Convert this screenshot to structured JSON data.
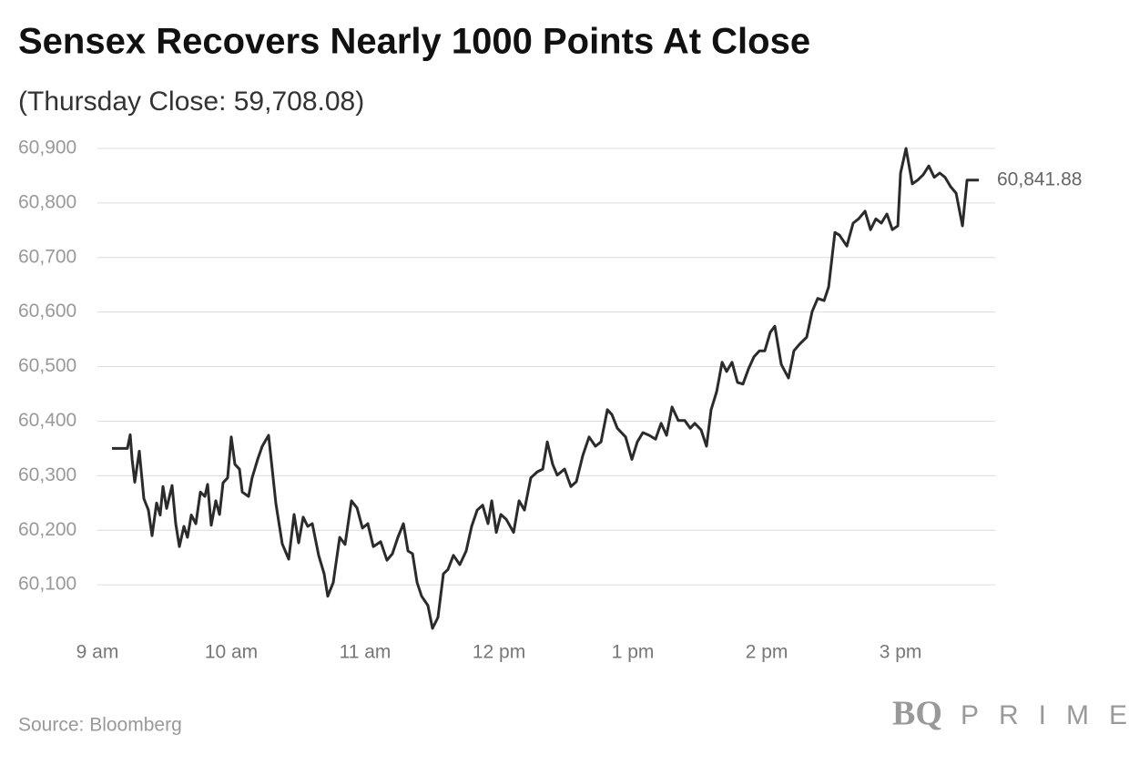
{
  "chart_data": {
    "type": "line",
    "title": "Sensex Recovers Nearly 1000 Points At Close",
    "subtitle": "(Thursday Close: 59,708.08)",
    "source": "Source: Bloomberg",
    "logo": {
      "brand": "BQ",
      "name": "PRIME"
    },
    "color": "#2b2b2b",
    "grid": true,
    "last_value_label": "60,841.88",
    "xlim": [
      9,
      15.707
    ],
    "xticks": [
      {
        "value": 9,
        "label": "9 am"
      },
      {
        "value": 10,
        "label": "10 am"
      },
      {
        "value": 11,
        "label": "11 am"
      },
      {
        "value": 12,
        "label": "12 pm"
      },
      {
        "value": 13,
        "label": "1 pm"
      },
      {
        "value": 14,
        "label": "2 pm"
      },
      {
        "value": 15,
        "label": "3 pm"
      }
    ],
    "ylim": [
      60000,
      60900
    ],
    "yticks": [
      {
        "value": 60100,
        "label": "60,100"
      },
      {
        "value": 60200,
        "label": "60,200"
      },
      {
        "value": 60300,
        "label": "60,300"
      },
      {
        "value": 60400,
        "label": "60,400"
      },
      {
        "value": 60500,
        "label": "60,500"
      },
      {
        "value": 60600,
        "label": "60,600"
      },
      {
        "value": 60700,
        "label": "60,700"
      },
      {
        "value": 60800,
        "label": "60,800"
      },
      {
        "value": 60900,
        "label": "60,900"
      }
    ],
    "x": [
      9.109,
      9.224,
      9.245,
      9.259,
      9.279,
      9.313,
      9.347,
      9.381,
      9.408,
      9.442,
      9.469,
      9.49,
      9.517,
      9.558,
      9.585,
      9.612,
      9.646,
      9.673,
      9.701,
      9.735,
      9.769,
      9.803,
      9.823,
      9.85,
      9.884,
      9.912,
      9.939,
      9.973,
      10.0,
      10.027,
      10.061,
      10.082,
      10.129,
      10.156,
      10.197,
      10.231,
      10.279,
      10.333,
      10.381,
      10.429,
      10.469,
      10.503,
      10.537,
      10.571,
      10.605,
      10.653,
      10.694,
      10.721,
      10.762,
      10.81,
      10.85,
      10.898,
      10.939,
      10.98,
      11.02,
      11.061,
      11.116,
      11.163,
      11.204,
      11.245,
      11.286,
      11.32,
      11.354,
      11.388,
      11.422,
      11.469,
      11.503,
      11.544,
      11.585,
      11.619,
      11.66,
      11.707,
      11.755,
      11.796,
      11.837,
      11.878,
      11.918,
      11.946,
      11.98,
      12.014,
      12.054,
      12.109,
      12.15,
      12.19,
      12.238,
      12.286,
      12.327,
      12.361,
      12.401,
      12.435,
      12.49,
      12.537,
      12.578,
      12.626,
      12.673,
      12.721,
      12.762,
      12.81,
      12.844,
      12.884,
      12.946,
      12.993,
      13.034,
      13.075,
      13.122,
      13.17,
      13.211,
      13.252,
      13.293,
      13.34,
      13.388,
      13.429,
      13.463,
      13.51,
      13.551,
      13.585,
      13.626,
      13.667,
      13.701,
      13.741,
      13.782,
      13.823,
      13.864,
      13.905,
      13.946,
      13.986,
      14.027,
      14.061,
      14.109,
      14.163,
      14.204,
      14.245,
      14.299,
      14.34,
      14.381,
      14.429,
      14.463,
      14.51,
      14.544,
      14.599,
      14.646,
      14.687,
      14.735,
      14.776,
      14.816,
      14.857,
      14.898,
      14.939,
      14.98,
      15.0,
      15.041,
      15.088,
      15.129,
      15.17,
      15.211,
      15.252,
      15.293,
      15.333,
      15.374,
      15.415,
      15.463,
      15.497,
      15.585
    ],
    "values": [
      60350,
      60350,
      60375,
      60330,
      60288,
      60345,
      60258,
      60237,
      60190,
      60250,
      60228,
      60280,
      60240,
      60282,
      60212,
      60170,
      60207,
      60187,
      60228,
      60212,
      60270,
      60262,
      60284,
      60209,
      60254,
      60229,
      60287,
      60296,
      60371,
      60321,
      60312,
      60270,
      60262,
      60296,
      60330,
      60354,
      60374,
      60249,
      60175,
      60147,
      60229,
      60177,
      60224,
      60207,
      60212,
      60154,
      60120,
      60079,
      60104,
      60187,
      60174,
      60254,
      60241,
      60204,
      60212,
      60170,
      60179,
      60145,
      60157,
      60187,
      60212,
      60162,
      60157,
      60104,
      60079,
      60062,
      60020,
      60040,
      60120,
      60128,
      60154,
      60137,
      60162,
      60207,
      60237,
      60246,
      60212,
      60254,
      60196,
      60229,
      60220,
      60196,
      60254,
      60237,
      60296,
      60307,
      60312,
      60362,
      60321,
      60301,
      60312,
      60280,
      60289,
      60337,
      60371,
      60354,
      60362,
      60421,
      60412,
      60387,
      60371,
      60330,
      60362,
      60379,
      60374,
      60367,
      60396,
      60374,
      60426,
      60401,
      60401,
      60387,
      60396,
      60384,
      60354,
      60421,
      60454,
      60508,
      60491,
      60508,
      60471,
      60468,
      60496,
      60518,
      60529,
      60529,
      60563,
      60574,
      60504,
      60479,
      60529,
      60541,
      60554,
      60601,
      60625,
      60621,
      60646,
      60746,
      60741,
      60721,
      60763,
      60771,
      60785,
      60751,
      60771,
      60763,
      60780,
      60751,
      60758,
      60855,
      60900,
      60835,
      60842,
      60852,
      60868,
      60847,
      60855,
      60847,
      60830,
      60818,
      60758,
      60842,
      60841.88
    ]
  }
}
